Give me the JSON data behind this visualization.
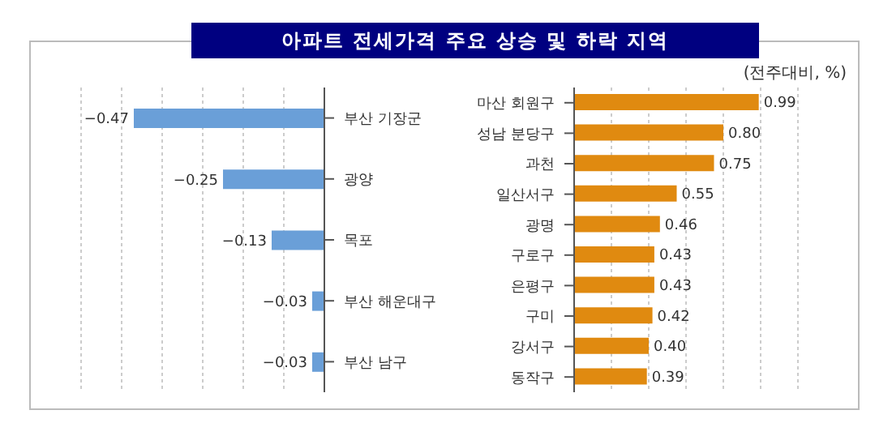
{
  "chart_data": [
    {
      "type": "bar",
      "orientation": "horizontal",
      "title": "아파트 전세가격 주요 상승 및 하락 지역",
      "categories": [
        "부산 기장군",
        "광양",
        "목포",
        "부산 해운대구",
        "부산 남구"
      ],
      "values": [
        -0.47,
        -0.25,
        -0.13,
        -0.03,
        -0.03
      ],
      "value_labels": [
        "−0.47",
        "−0.25",
        "−0.13",
        "−0.03",
        "−0.03"
      ],
      "color": "#6a9fd8",
      "xlim": [
        -0.6,
        0
      ],
      "xticks": [
        {
          "value": -0.6,
          "label": null
        },
        {
          "value": -0.5,
          "label": null
        },
        {
          "value": -0.4,
          "label": null
        },
        {
          "value": -0.3,
          "label": null
        },
        {
          "value": -0.2,
          "label": null
        },
        {
          "value": -0.1,
          "label": null
        },
        {
          "value": 0,
          "label": null
        }
      ],
      "grid": "x",
      "tick_labels": "y",
      "legend": false
    },
    {
      "type": "bar",
      "orientation": "horizontal",
      "annotations": [
        "(전주대비, %)"
      ],
      "categories": [
        "마산 회원구",
        "성남 분당구",
        "과천",
        "일산서구",
        "광명",
        "구로구",
        "은평구",
        "구미",
        "강서구",
        "동작구"
      ],
      "values": [
        0.99,
        0.8,
        0.75,
        0.55,
        0.46,
        0.43,
        0.43,
        0.42,
        0.4,
        0.39
      ],
      "value_labels": [
        "0.99",
        "0.80",
        "0.75",
        "0.55",
        "0.46",
        "0.43",
        "0.43",
        "0.42",
        "0.40",
        "0.39"
      ],
      "color": "#e08a10",
      "xlim": [
        0,
        1.2
      ],
      "xticks": [
        {
          "value": 0,
          "label": null
        },
        {
          "value": 0.2,
          "label": null
        },
        {
          "value": 0.4,
          "label": null
        },
        {
          "value": 0.6,
          "label": null
        },
        {
          "value": 0.8,
          "label": null
        },
        {
          "value": 1,
          "label": null
        },
        {
          "value": 1.2,
          "label": null
        }
      ],
      "grid": "x",
      "tick_labels": "y",
      "legend": false
    }
  ]
}
